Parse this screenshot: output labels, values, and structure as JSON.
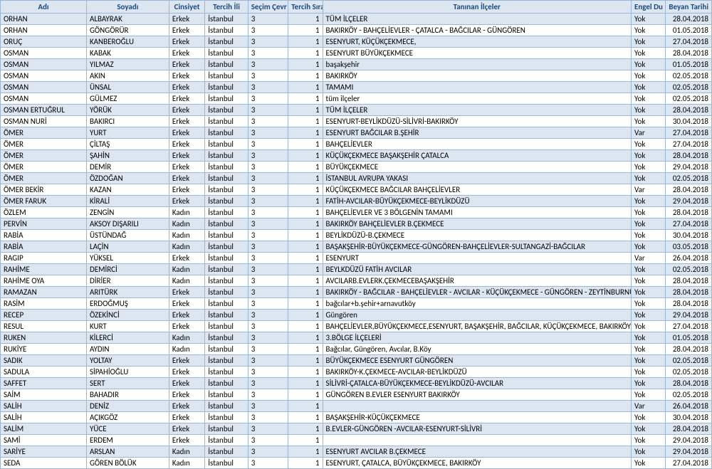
{
  "columns": [
    "Adı",
    "Soyadı",
    "Cinsiyet",
    "Tercih İli",
    "Seçim Çevr",
    "Tercih Sıra",
    "Tanınan İlçeler",
    "Engel Du",
    "Beyan Tarihi"
  ],
  "rows": [
    [
      "ORHAN",
      "ALBAYRAK",
      "Erkek",
      "İstanbul",
      "3",
      "1",
      "TÜM İLÇELER",
      "Yok",
      "28.04.2018"
    ],
    [
      "ORHAN",
      "GÖNGÖRÜR",
      "Erkek",
      "İstanbul",
      "3",
      "1",
      "BAKIRKÖY - BAHÇELİEVLER - ÇATALCA - BAĞCILAR - GÜNGÖREN",
      "Yok",
      "01.05.2018"
    ],
    [
      "ORUÇ",
      "KANBEROĞLU",
      "Erkek",
      "İstanbul",
      "3",
      "1",
      "ESENYURT, KÜÇÜKÇEKMECE,",
      "Yok",
      "27.04.2018"
    ],
    [
      "OSMAN",
      "KABAK",
      "Erkek",
      "İstanbul",
      "3",
      "1",
      "ESENYURT BÜYÜKÇEKMECE",
      "Yok",
      "28.04.2018"
    ],
    [
      "OSMAN",
      "YILMAZ",
      "Erkek",
      "İstanbul",
      "3",
      "1",
      "başakşehir",
      "Yok",
      "01.05.2018"
    ],
    [
      "OSMAN",
      "AKIN",
      "Erkek",
      "İstanbul",
      "3",
      "1",
      "BAKIRKÖY",
      "Yok",
      "02.05.2018"
    ],
    [
      "OSMAN",
      "ÜNSAL",
      "Erkek",
      "İstanbul",
      "3",
      "1",
      "TAMAMI",
      "Yok",
      "02.05.2018"
    ],
    [
      "OSMAN",
      "GÜLMEZ",
      "Erkek",
      "İstanbul",
      "3",
      "1",
      "tüm ilçeler",
      "Yok",
      "02.05.2018"
    ],
    [
      "OSMAN ERTUĞRUL",
      "YÖRÜK",
      "Erkek",
      "İstanbul",
      "3",
      "1",
      "TÜM İLÇELER",
      "Yok",
      "28.04.2018"
    ],
    [
      "OSMAN NURİ",
      "BAKIRCI",
      "Erkek",
      "İstanbul",
      "3",
      "1",
      "ESENYURT-BEYLİKDÜZÜ-SİLİVRİ-BAKIRKÖY",
      "Yok",
      "30.04.2018"
    ],
    [
      "ÖMER",
      "YURT",
      "Erkek",
      "İstanbul",
      "3",
      "1",
      "ESENYURT BAĞCILAR B.ŞEHİR",
      "Var",
      "27.04.2018"
    ],
    [
      "ÖMER",
      "ÇİLTAŞ",
      "Erkek",
      "İstanbul",
      "3",
      "1",
      "BAHÇELİEVLER",
      "Yok",
      "27.04.2018"
    ],
    [
      "ÖMER",
      "ŞAHİN",
      "Erkek",
      "İstanbul",
      "3",
      "1",
      "KÜÇÜKÇEKMECE BAŞAKŞEHİR ÇATALCA",
      "Yok",
      "28.04.2018"
    ],
    [
      "ÖMER",
      "DEMİR",
      "Erkek",
      "İstanbul",
      "3",
      "1",
      "BÜYÜKÇEKMECE",
      "Yok",
      "29.04.2018"
    ],
    [
      "ÖMER",
      "ÖZDOĞAN",
      "Erkek",
      "İstanbul",
      "3",
      "1",
      "İSTANBUL AVRUPA YAKASI",
      "Yok",
      "02.05.2018"
    ],
    [
      "ÖMER BEKİR",
      "KAZAN",
      "Erkek",
      "İstanbul",
      "3",
      "1",
      "KÜÇÜKÇEKMECE BAĞCILAR BAHÇELİEVLER",
      "Var",
      "28.04.2018"
    ],
    [
      "ÖMER FARUK",
      "KİRALİ",
      "Erkek",
      "İstanbul",
      "3",
      "1",
      "FATİH-AVCILAR-BÜYÜKÇEKMECE-BEYLİKDÜZÜ",
      "Yok",
      "29.04.2018"
    ],
    [
      "ÖZLEM",
      "ZENGİN",
      "Kadın",
      "İstanbul",
      "3",
      "1",
      "BAHÇELİEVLER VE 3 BÖLGENİN TAMAMI",
      "Yok",
      "28.04.2018"
    ],
    [
      "PERVİN",
      "AKSOY DIŞARILI",
      "Kadın",
      "İstanbul",
      "3",
      "1",
      "BAKIRKÖY BAHÇELİEVLER B.ÇEKMECE",
      "Yok",
      "27.04.2018"
    ],
    [
      "RABİA",
      "ÜSTÜNDAĞ",
      "Kadın",
      "İstanbul",
      "3",
      "1",
      "BEYLİKDÜZÜ-B.ÇEKMECE",
      "Yok",
      "30.04.2018"
    ],
    [
      "RABİA",
      "LAÇİN",
      "Kadın",
      "İstanbul",
      "3",
      "1",
      "BAŞAKŞEHİR-BÜYÜKÇEKMECE-GÜNGÖREN-BAHÇELİEVLER-SULTANGAZİ-BAĞCILAR",
      "Yok",
      "03.05.2018"
    ],
    [
      "RAGIP",
      "YÜKSEL",
      "Erkek",
      "İstanbul",
      "3",
      "1",
      "ESENYURT",
      "Var",
      "26.04.2018"
    ],
    [
      "RAHİME",
      "DEMİRCİ",
      "Kadın",
      "İstanbul",
      "3",
      "1",
      "BEYLKDÜZÜ FATİH AVCILAR",
      "Yok",
      "02.05.2018"
    ],
    [
      "RAHİME OYA",
      "DİRİER",
      "Kadın",
      "İstanbul",
      "3",
      "1",
      "AVCILARB.EVLERK.ÇEKMECEBAŞAKŞEHİR",
      "Yok",
      "28.04.2018"
    ],
    [
      "RAMAZAN",
      "ARITÜRK",
      "Erkek",
      "İstanbul",
      "3",
      "1",
      "BAKIRKÖY - BAĞCILAR - BAHÇELİEVLER - AVCILAR - KÜÇÜKÇEKMECE - GÜNGÖREN - ZEYTİNBURNU -",
      "Yok",
      "28.04.2018"
    ],
    [
      "RASİM",
      "ERDOĞMUŞ",
      "Erkek",
      "İstanbul",
      "3",
      "1",
      "bağcılar+b.şehir+arnavutköy",
      "Yok",
      "28.04.2018"
    ],
    [
      "RECEP",
      "ÖZEKİNCİ",
      "Erkek",
      "İstanbul",
      "3",
      "1",
      "Güngören",
      "Yok",
      "29.04.2018"
    ],
    [
      "RESUL",
      "KURT",
      "Erkek",
      "İstanbul",
      "3",
      "1",
      "BAHÇELİEVLER,BÜYÜKÇEKMECE,ESENYURT, BAŞAKŞEHİR, BAĞCILAR, KÜÇÜKÇEKMECE, BAKIRKÖY",
      "Yok",
      "27.04.2018"
    ],
    [
      "RUKEN",
      "KİLERCİ",
      "Kadın",
      "İstanbul",
      "3",
      "1",
      "3.BÖLGE İLÇELERİ",
      "Yok",
      "01.05.2018"
    ],
    [
      "RUKİYE",
      "AYDIN",
      "Kadın",
      "İstanbul",
      "3",
      "1",
      "Bağcılar, Güngören, Avcılar, B.Köy",
      "Yok",
      "28.04.2018"
    ],
    [
      "SADIK",
      "YOLTAY",
      "Erkek",
      "İstanbul",
      "3",
      "1",
      "BÜYÜKÇEKMECE ESENYURT GÜNGÖREN",
      "Yok",
      "02.05.2018"
    ],
    [
      "SADULA",
      "SİPAHİOĞLU",
      "Erkek",
      "İstanbul",
      "3",
      "1",
      "BAKIRKÖY-K.ÇEKMECE-AVCILAR-BEYLİKDÜZÜ",
      "Yok",
      "02.05.2018"
    ],
    [
      "SAFFET",
      "SERT",
      "Erkek",
      "İstanbul",
      "3",
      "1",
      "SİLİVRİ-ÇATALCA-BÜYÜKÇEKMECE-BEYLİKDÜZÜ-AVCILAR",
      "Yok",
      "28.04.2018"
    ],
    [
      "SAİM",
      "BAHADIR",
      "Erkek",
      "İstanbul",
      "3",
      "1",
      "GÜNGÖREN B.EVLER ESENYURT BAKIRKÖY",
      "Yok",
      "02.05.2018"
    ],
    [
      "SALİH",
      "DENİZ",
      "Erkek",
      "İstanbul",
      "3",
      "1",
      "",
      "Var",
      "26.04.2018"
    ],
    [
      "SALİH",
      "AÇIKGÖZ",
      "Erkek",
      "İstanbul",
      "3",
      "1",
      "BAŞAKŞEHİR-KÜÇÜKÇEKMECE",
      "Yok",
      "30.04.2018"
    ],
    [
      "SALİM",
      "YÜCE",
      "Erkek",
      "İstanbul",
      "3",
      "1",
      "B.EVLER-GÜNGÖREN -AVCILAR-ESENYURT-SİLİVRİ",
      "Yok",
      "28.04.2018"
    ],
    [
      "SAMİ",
      "ERDEM",
      "Erkek",
      "İstanbul",
      "3",
      "1",
      "",
      "Yok",
      "29.04.2018"
    ],
    [
      "SARİYE",
      "ARSLAN",
      "Kadın",
      "İstanbul",
      "3",
      "1",
      "ESENYURT AVCILAR B.ÇEKMECE",
      "Yok",
      "29.04.2018"
    ],
    [
      "SEDA",
      "GÖREN BÖLÜK",
      "Kadın",
      "İstanbul",
      "3",
      "1",
      "ESENYURT, ÇATALCA, BÜYÜKÇEKMECE, BAKIRKÖY",
      "Yok",
      "27.04.2018"
    ]
  ]
}
